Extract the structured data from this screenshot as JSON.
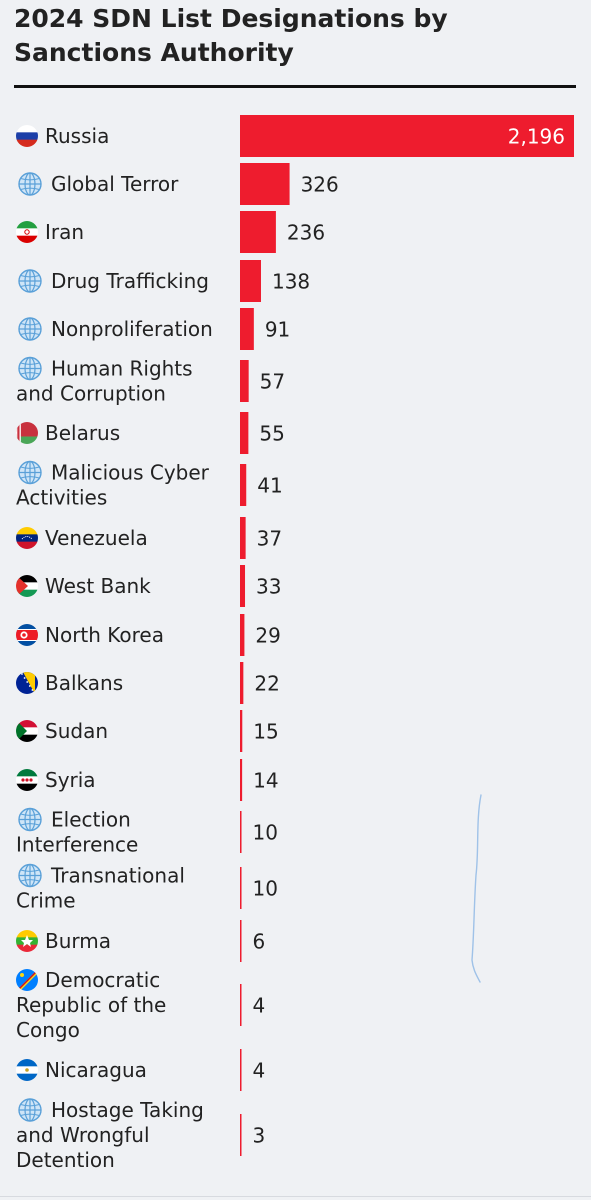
{
  "chart_data": {
    "type": "bar",
    "orientation": "horizontal",
    "title": "2024 SDN List Designations by Sanctions Authority",
    "xlabel": "",
    "ylabel": "",
    "bar_color": "#ee1c2e",
    "categories": [
      "Russia",
      "Global Terror",
      "Iran",
      "Drug Trafficking",
      "Nonproliferation",
      "Human Rights and Corruption",
      "Belarus",
      "Malicious Cyber Activities",
      "Venezuela",
      "West Bank",
      "North Korea",
      "Balkans",
      "Sudan",
      "Syria",
      "Election Interference",
      "Transnational Crime",
      "Burma",
      "Democratic Republic of the Congo",
      "Nicaragua",
      "Hostage Taking and Wrongful Detention"
    ],
    "value_labels": [
      "2,196",
      "326",
      "236",
      "138",
      "91",
      "57",
      "55",
      "41",
      "37",
      "33",
      "29",
      "22",
      "15",
      "14",
      "10",
      "10",
      "6",
      "4",
      "4",
      "3"
    ],
    "values": [
      2196,
      326,
      236,
      138,
      91,
      57,
      55,
      41,
      37,
      33,
      29,
      22,
      15,
      14,
      10,
      10,
      6,
      4,
      4,
      3
    ],
    "icons": [
      "flag-russia-icon",
      "globe-icon",
      "flag-iran-icon",
      "globe-icon",
      "globe-icon",
      "globe-icon",
      "flag-belarus-icon",
      "globe-icon",
      "flag-venezuela-icon",
      "flag-palestine-icon",
      "flag-north-korea-icon",
      "flag-bosnia-icon",
      "flag-sudan-icon",
      "flag-syria-icon",
      "globe-icon",
      "globe-icon",
      "flag-burma-icon",
      "flag-drc-icon",
      "flag-nicaragua-icon",
      "globe-icon"
    ],
    "xlim": [
      0,
      2196
    ],
    "grid": false,
    "legend": "none"
  }
}
